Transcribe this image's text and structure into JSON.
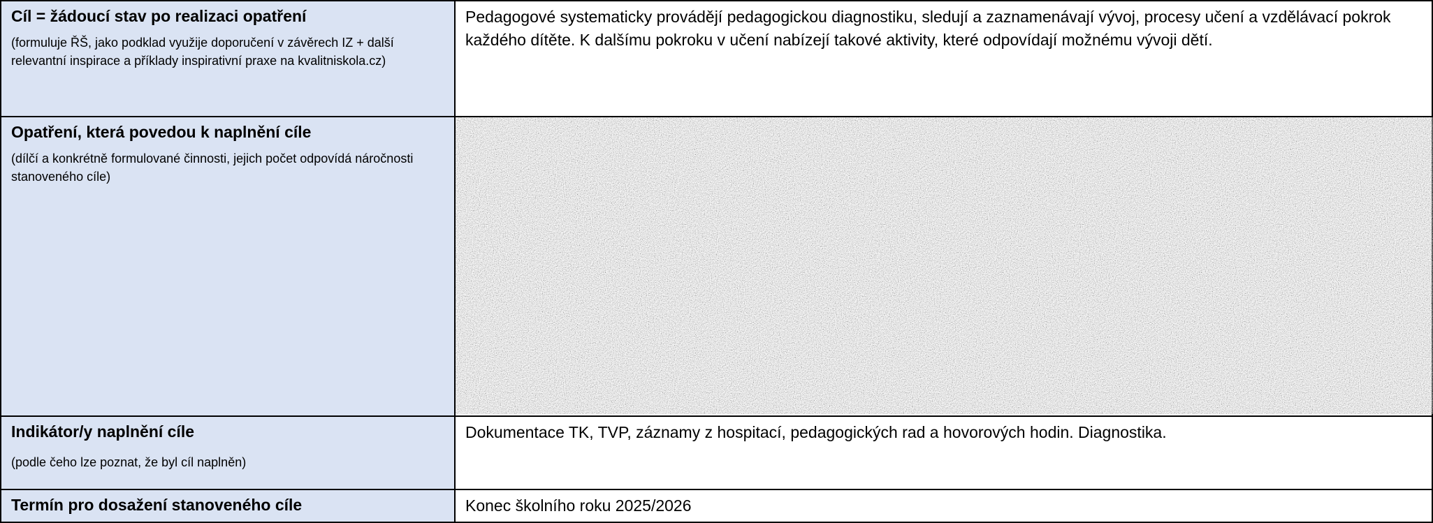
{
  "table": {
    "rows": [
      {
        "label": "Cíl = žádoucí stav po realizaci opatření",
        "note": "(formuluje ŘŠ, jako podklad využije doporučení v závěrech IZ + další relevantní inspirace a příklady inspirativní praxe na kvalitniskola.cz)",
        "content": "Pedagogové systematicky provádějí pedagogickou diagnostiku, sledují a zaznamenávají vývoj, procesy učení a vzdělávací pokrok každého dítěte. K dalšímu pokroku v učení nabízejí takové aktivity, které odpovídají možnému vývoji dětí."
      },
      {
        "label": "Opatření, která povedou k naplnění cíle",
        "note": "(dílčí a konkrétně formulované činnosti, jejich počet odpovídá náročnosti stanoveného cíle)"
      },
      {
        "label": "Indikátor/y naplnění cíle",
        "note": "(podle čeho lze poznat, že byl cíl naplněn)",
        "content": "Dokumentace TK, TVP, záznamy z hospitací, pedagogických rad a hovorových hodin. Diagnostika."
      },
      {
        "label": "Termín pro dosažení stanoveného cíle",
        "content": "Konec školního roku 2025/2026"
      }
    ]
  }
}
